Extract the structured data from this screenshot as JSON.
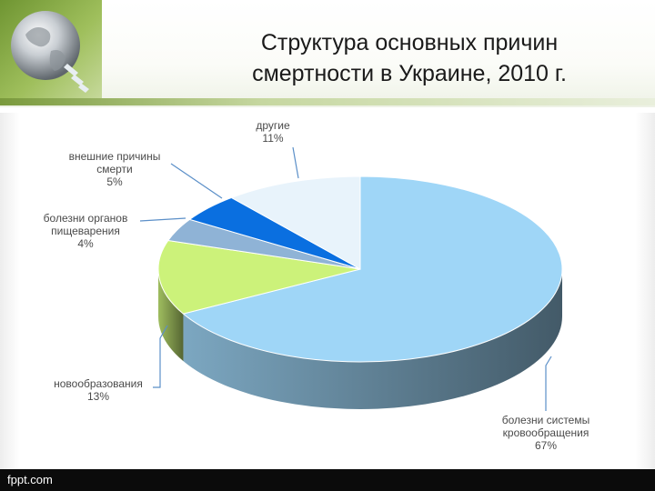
{
  "slide": {
    "title_line1": "Структура основных причин",
    "title_line2": "смертности в Украине, 2010 г.",
    "footer": "fppt.com"
  },
  "chart_data": {
    "type": "pie",
    "title": "Структура основных причин смертности в Украине, 2010 г.",
    "slices": [
      {
        "label_lines": [
          "болезни системы",
          "кровообращения"
        ],
        "value": 67,
        "value_label": "67%",
        "color": "#9fd6f7"
      },
      {
        "label_lines": [
          "новообразования"
        ],
        "value": 13,
        "value_label": "13%",
        "color": "#ccf27a"
      },
      {
        "label_lines": [
          "болезни органов",
          "пищеварения"
        ],
        "value": 4,
        "value_label": "4%",
        "color": "#8fb3d6"
      },
      {
        "label_lines": [
          "внешние причины",
          "смерти"
        ],
        "value": 5,
        "value_label": "5%",
        "color": "#0a6fe0"
      },
      {
        "label_lines": [
          "другие"
        ],
        "value": 11,
        "value_label": "11%",
        "color": "#e8f3fb"
      }
    ],
    "legend": "none"
  }
}
